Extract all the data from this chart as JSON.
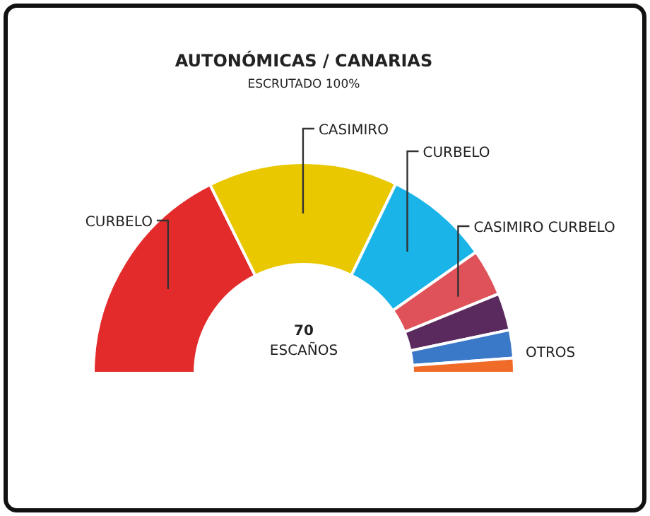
{
  "chart_data": {
    "type": "donut",
    "title": "AUTONÓMICAS  / CANARIAS",
    "subtitle": "ESCRUTADO 100%",
    "categories": [
      "CURBELO",
      "CASIMIRO",
      "CURBELO",
      "CASIMIRO CURBELO",
      null,
      "OTROS",
      null
    ],
    "values": [
      35.3,
      29.1,
      16.1,
      7.2,
      5.7,
      4.3,
      2.3
    ],
    "colors": [
      "#e32b2b",
      "#eac800",
      "#1ab4e8",
      "#e0525a",
      "#5a2a5e",
      "#3a78c8",
      "#f06a28"
    ],
    "annotations": [
      "70",
      "ESCAÑOS"
    ],
    "legend": false
  }
}
